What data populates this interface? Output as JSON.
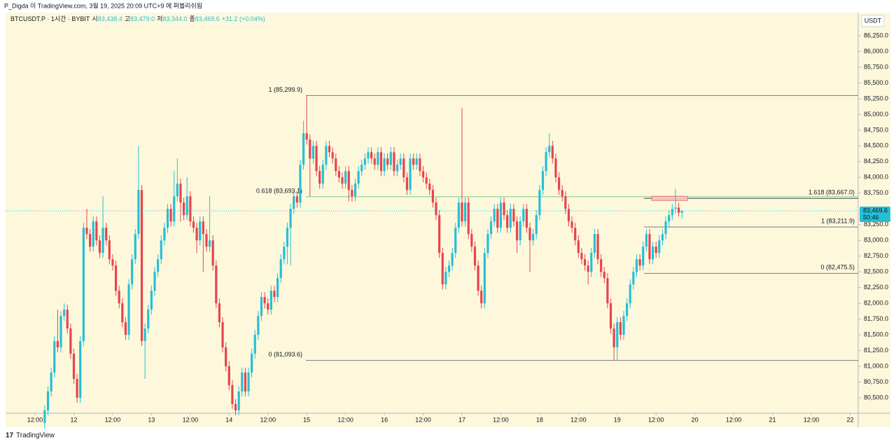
{
  "header": "P_Digda 이 TradingView.com, 3월 19, 2025 20:09 UTC+9 에 퍼블리쉬됨",
  "footer": "TradingView",
  "chart_data": {
    "type": "candlestick",
    "legend": {
      "symbol": "BTCUSDT.P · 1시간 · BYBIT",
      "open": {
        "label": "시",
        "value": "83,438.4"
      },
      "high": {
        "label": "고",
        "value": "83,479.0"
      },
      "low": {
        "label": "저",
        "value": "83,344.0"
      },
      "close": {
        "label": "종",
        "value": "83,469.6"
      },
      "change": "+31.2 (+0.04%)"
    },
    "currency": "USDT",
    "current_price": {
      "value": 83469.6,
      "label": "83,469.6"
    },
    "countdown": "50:46",
    "up_color": "#26bfd4",
    "down_color": "#e8434f",
    "ylim": [
      80255,
      86595
    ],
    "yticks": [
      {
        "value": 80500,
        "label": "80,500.0"
      },
      {
        "value": 80750,
        "label": "80,750.0"
      },
      {
        "value": 81000,
        "label": "81,000.0"
      },
      {
        "value": 81250,
        "label": "81,250.0"
      },
      {
        "value": 81500,
        "label": "81,500.0"
      },
      {
        "value": 81750,
        "label": "81,750.0"
      },
      {
        "value": 82000,
        "label": "82,000.0"
      },
      {
        "value": 82250,
        "label": "82,250.0"
      },
      {
        "value": 82500,
        "label": "82,500.0"
      },
      {
        "value": 82750,
        "label": "82,750.0"
      },
      {
        "value": 83000,
        "label": "83,000.0"
      },
      {
        "value": 83250,
        "label": "83,250.0"
      },
      {
        "value": 83750,
        "label": "83,750.0"
      },
      {
        "value": 84000,
        "label": "84,000.0"
      },
      {
        "value": 84250,
        "label": "84,250.0"
      },
      {
        "value": 84500,
        "label": "84,500.0"
      },
      {
        "value": 84750,
        "label": "84,750.0"
      },
      {
        "value": 85000,
        "label": "85,000.0"
      },
      {
        "value": 85250,
        "label": "85,250.0"
      },
      {
        "value": 85500,
        "label": "85,500.0"
      },
      {
        "value": 85750,
        "label": "85,750.0"
      },
      {
        "value": 86000,
        "label": "86,000.0"
      },
      {
        "value": 86250,
        "label": "86,250.0"
      }
    ],
    "xlim": [
      -12.1,
      251.5
    ],
    "xticks": [
      {
        "value": -3,
        "label": "12:00"
      },
      {
        "value": 9,
        "label": "12"
      },
      {
        "value": 21,
        "label": "12:00"
      },
      {
        "value": 33,
        "label": "13"
      },
      {
        "value": 45,
        "label": "12:00"
      },
      {
        "value": 57,
        "label": "14"
      },
      {
        "value": 69,
        "label": "12:00"
      },
      {
        "value": 81,
        "label": "15"
      },
      {
        "value": 93,
        "label": "12:00"
      },
      {
        "value": 105,
        "label": "16"
      },
      {
        "value": 117,
        "label": "12:00"
      },
      {
        "value": 129,
        "label": "17"
      },
      {
        "value": 141,
        "label": "12:00"
      },
      {
        "value": 153,
        "label": "18"
      },
      {
        "value": 165,
        "label": "12:00"
      },
      {
        "value": 177,
        "label": "19"
      },
      {
        "value": 189,
        "label": "12:00"
      },
      {
        "value": 201,
        "label": "20"
      },
      {
        "value": 213,
        "label": "12:00"
      },
      {
        "value": 225,
        "label": "21"
      },
      {
        "value": 237,
        "label": "12:00"
      },
      {
        "value": 249,
        "label": "22"
      }
    ],
    "fibs": [
      {
        "color": "#787b86",
        "levels": [
          {
            "value": 85299.9,
            "label": "1 (85,299.9)",
            "color": "#787b86"
          },
          {
            "value": 83693.1,
            "label": "0.618 (83,693.1)",
            "color": "#81c784"
          },
          {
            "value": 81093.6,
            "label": "0 (81,093.6)",
            "color": "#787b86"
          }
        ]
      },
      {
        "color": "#787b86",
        "levels": [
          {
            "value": 83667.0,
            "label": "1.618 (83,667.0)",
            "color": "#434651"
          },
          {
            "value": 83211.9,
            "label": "1 (83,211.9)",
            "color": "#787b86"
          },
          {
            "value": 82475.5,
            "label": "0 (82,475.5)",
            "color": "#787b86"
          }
        ]
      }
    ],
    "candles": [
      [
        80100,
        80380,
        80000,
        80300
      ],
      [
        80300,
        80680,
        80220,
        80600
      ],
      [
        80600,
        80980,
        80520,
        80900
      ],
      [
        80900,
        81480,
        80820,
        81400
      ],
      [
        81400,
        81900,
        81220,
        81300
      ],
      [
        81300,
        81880,
        81220,
        81800
      ],
      [
        81800,
        82000,
        81720,
        81900
      ],
      [
        81900,
        81980,
        81520,
        81600
      ],
      [
        81600,
        81680,
        81120,
        81200
      ],
      [
        81200,
        81280,
        80720,
        80800
      ],
      [
        80800,
        80880,
        80420,
        80500
      ],
      [
        80500,
        81480,
        80420,
        81400
      ],
      [
        81400,
        83280,
        81320,
        83200
      ],
      [
        83200,
        83500,
        83020,
        83100
      ],
      [
        83100,
        83180,
        82820,
        82900
      ],
      [
        82900,
        83380,
        82820,
        83300
      ],
      [
        83300,
        83380,
        82920,
        83000
      ],
      [
        83000,
        83080,
        82720,
        82800
      ],
      [
        82800,
        83700,
        82720,
        83200
      ],
      [
        83200,
        83280,
        82920,
        83000
      ],
      [
        83000,
        83080,
        82620,
        82700
      ],
      [
        82700,
        82780,
        82520,
        82600
      ],
      [
        82600,
        82680,
        82120,
        82200
      ],
      [
        82200,
        82280,
        81920,
        82000
      ],
      [
        82000,
        82080,
        81620,
        81700
      ],
      [
        81700,
        81780,
        81420,
        81500
      ],
      [
        81500,
        82380,
        81420,
        82300
      ],
      [
        82300,
        82780,
        82220,
        82700
      ],
      [
        82700,
        83180,
        82620,
        83100
      ],
      [
        83100,
        84500,
        83020,
        83800
      ],
      [
        83800,
        83880,
        81320,
        81400
      ],
      [
        81400,
        81680,
        80800,
        81600
      ],
      [
        81600,
        81980,
        81520,
        81900
      ],
      [
        81900,
        82280,
        81820,
        82200
      ],
      [
        82200,
        82580,
        82120,
        82500
      ],
      [
        82500,
        82780,
        82420,
        82700
      ],
      [
        82700,
        83080,
        82620,
        83000
      ],
      [
        83000,
        83280,
        82920,
        83200
      ],
      [
        83200,
        83580,
        83120,
        83500
      ],
      [
        83500,
        83580,
        83220,
        83300
      ],
      [
        83300,
        84100,
        83220,
        83700
      ],
      [
        83700,
        84300,
        83620,
        83900
      ],
      [
        83900,
        83980,
        83300,
        83600
      ],
      [
        83600,
        83680,
        83320,
        83400
      ],
      [
        83400,
        84000,
        83320,
        83700
      ],
      [
        83700,
        83780,
        83220,
        83300
      ],
      [
        83300,
        83380,
        83120,
        83200
      ],
      [
        83200,
        83280,
        82800,
        83000
      ],
      [
        83000,
        83380,
        82920,
        83300
      ],
      [
        83300,
        83380,
        82500,
        83100
      ],
      [
        83100,
        83180,
        82820,
        82900
      ],
      [
        82900,
        83700,
        82820,
        83000
      ],
      [
        83000,
        83080,
        82520,
        82600
      ],
      [
        82600,
        82680,
        81920,
        82000
      ],
      [
        82000,
        82080,
        81620,
        81700
      ],
      [
        81700,
        81780,
        81220,
        81300
      ],
      [
        81300,
        81380,
        80920,
        81000
      ],
      [
        81000,
        81080,
        80620,
        80700
      ],
      [
        80700,
        80780,
        80320,
        80400
      ],
      [
        80400,
        80480,
        80220,
        80300
      ],
      [
        80300,
        80680,
        80220,
        80600
      ],
      [
        80600,
        80980,
        80520,
        80900
      ],
      [
        80900,
        80980,
        80520,
        80600
      ],
      [
        80600,
        80980,
        80520,
        80900
      ],
      [
        80900,
        81280,
        80820,
        81200
      ],
      [
        81200,
        81580,
        81120,
        81500
      ],
      [
        81500,
        81880,
        81420,
        81800
      ],
      [
        81800,
        82180,
        81720,
        82100
      ],
      [
        82100,
        82180,
        81920,
        82000
      ],
      [
        82000,
        82080,
        81820,
        81900
      ],
      [
        81900,
        82280,
        81820,
        82200
      ],
      [
        82200,
        82280,
        82020,
        82100
      ],
      [
        82100,
        82480,
        82020,
        82400
      ],
      [
        82400,
        82780,
        82320,
        82700
      ],
      [
        82700,
        82980,
        82620,
        82900
      ],
      [
        82900,
        83280,
        82620,
        83200
      ],
      [
        83200,
        83580,
        82600,
        83500
      ],
      [
        83500,
        83780,
        83420,
        83700
      ],
      [
        83700,
        83780,
        83520,
        83600
      ],
      [
        83600,
        84280,
        83520,
        84200
      ],
      [
        84200,
        84900,
        84120,
        84700
      ],
      [
        84700,
        85299.9,
        84520,
        84600
      ],
      [
        84600,
        84680,
        83700,
        84300
      ],
      [
        84300,
        84580,
        84220,
        84500
      ],
      [
        84500,
        84580,
        84020,
        84100
      ],
      [
        84100,
        84180,
        83820,
        83900
      ],
      [
        83900,
        84280,
        83820,
        84200
      ],
      [
        84200,
        84580,
        84120,
        84500
      ],
      [
        84500,
        84580,
        84320,
        84400
      ],
      [
        84400,
        84480,
        84220,
        84300
      ],
      [
        84300,
        84380,
        84020,
        84100
      ],
      [
        84100,
        84180,
        83920,
        84000
      ],
      [
        84000,
        84080,
        83820,
        83900
      ],
      [
        83900,
        84180,
        83820,
        84100
      ],
      [
        84100,
        84180,
        83620,
        83800
      ],
      [
        83800,
        83880,
        83620,
        83700
      ],
      [
        83700,
        83980,
        83620,
        83900
      ],
      [
        83900,
        84180,
        83820,
        84100
      ],
      [
        84100,
        84280,
        84020,
        84200
      ],
      [
        84200,
        84380,
        84120,
        84300
      ],
      [
        84300,
        84480,
        84220,
        84400
      ],
      [
        84400,
        84480,
        84220,
        84300
      ],
      [
        84300,
        84380,
        84120,
        84200
      ],
      [
        84200,
        84480,
        84120,
        84400
      ],
      [
        84400,
        84480,
        84020,
        84100
      ],
      [
        84100,
        84380,
        84020,
        84300
      ],
      [
        84300,
        84380,
        84120,
        84200
      ],
      [
        84200,
        84480,
        84120,
        84400
      ],
      [
        84400,
        84480,
        84020,
        84100
      ],
      [
        84100,
        84280,
        84020,
        84200
      ],
      [
        84200,
        84380,
        84120,
        84300
      ],
      [
        84300,
        84380,
        83920,
        84000
      ],
      [
        84000,
        84080,
        83720,
        83800
      ],
      [
        83800,
        84380,
        83720,
        84300
      ],
      [
        84300,
        84380,
        84120,
        84200
      ],
      [
        84200,
        84380,
        84120,
        84300
      ],
      [
        84300,
        84380,
        84020,
        84100
      ],
      [
        84100,
        84180,
        83920,
        84000
      ],
      [
        84000,
        84080,
        83820,
        83900
      ],
      [
        83900,
        83980,
        83720,
        83800
      ],
      [
        83800,
        83880,
        83520,
        83600
      ],
      [
        83600,
        83680,
        83320,
        83400
      ],
      [
        83400,
        83480,
        82720,
        82800
      ],
      [
        82800,
        82880,
        82220,
        82300
      ],
      [
        82300,
        82580,
        82220,
        82500
      ],
      [
        82500,
        82680,
        82420,
        82600
      ],
      [
        82600,
        82880,
        82520,
        82800
      ],
      [
        82800,
        83280,
        82720,
        83200
      ],
      [
        83200,
        83680,
        83120,
        83600
      ],
      [
        83600,
        85100,
        83220,
        83300
      ],
      [
        83300,
        83680,
        83220,
        83600
      ],
      [
        83600,
        83680,
        83020,
        83100
      ],
      [
        83100,
        83180,
        82820,
        82900
      ],
      [
        82900,
        82980,
        82520,
        82600
      ],
      [
        82600,
        82680,
        82120,
        82200
      ],
      [
        82200,
        82280,
        81920,
        82000
      ],
      [
        82000,
        82880,
        81920,
        82800
      ],
      [
        82800,
        83180,
        82720,
        83100
      ],
      [
        83100,
        83380,
        83020,
        83300
      ],
      [
        83300,
        83580,
        83220,
        83500
      ],
      [
        83500,
        83580,
        83120,
        83200
      ],
      [
        83200,
        83680,
        83120,
        83600
      ],
      [
        83600,
        83680,
        83320,
        83400
      ],
      [
        83400,
        83480,
        83120,
        83200
      ],
      [
        83200,
        83580,
        83120,
        83500
      ],
      [
        83500,
        83580,
        83220,
        83300
      ],
      [
        83300,
        83380,
        82800,
        83000
      ],
      [
        83000,
        83380,
        82920,
        83300
      ],
      [
        83300,
        83580,
        83220,
        83500
      ],
      [
        83500,
        83580,
        83120,
        83200
      ],
      [
        83200,
        83280,
        82500,
        83000
      ],
      [
        83000,
        83180,
        82920,
        83100
      ],
      [
        83100,
        83480,
        83020,
        83400
      ],
      [
        83400,
        83880,
        83320,
        83800
      ],
      [
        83800,
        84180,
        83720,
        84100
      ],
      [
        84100,
        84480,
        84020,
        84400
      ],
      [
        84400,
        84700,
        84320,
        84500
      ],
      [
        84500,
        84580,
        84220,
        84300
      ],
      [
        84300,
        84380,
        83920,
        84000
      ],
      [
        84000,
        84080,
        83720,
        83800
      ],
      [
        83800,
        83880,
        83620,
        83700
      ],
      [
        83700,
        83780,
        83420,
        83500
      ],
      [
        83500,
        83580,
        83220,
        83300
      ],
      [
        83300,
        83380,
        83120,
        83200
      ],
      [
        83200,
        83280,
        82920,
        83000
      ],
      [
        83000,
        83080,
        82720,
        82800
      ],
      [
        82800,
        82880,
        82620,
        82700
      ],
      [
        82700,
        82780,
        82520,
        82600
      ],
      [
        82600,
        82680,
        82300,
        82500
      ],
      [
        82500,
        82880,
        82420,
        82800
      ],
      [
        82800,
        83180,
        82720,
        83100
      ],
      [
        83100,
        83180,
        82620,
        82700
      ],
      [
        82700,
        82780,
        82420,
        82500
      ],
      [
        82500,
        82580,
        82320,
        82400
      ],
      [
        82400,
        82480,
        81920,
        82000
      ],
      [
        82000,
        82080,
        81520,
        81600
      ],
      [
        81600,
        81680,
        81093.6,
        81300
      ],
      [
        81300,
        81780,
        81100,
        81700
      ],
      [
        81700,
        81780,
        81420,
        81500
      ],
      [
        81500,
        81880,
        81420,
        81800
      ],
      [
        81800,
        82080,
        81720,
        82000
      ],
      [
        82000,
        82380,
        81920,
        82300
      ],
      [
        82300,
        82580,
        82220,
        82500
      ],
      [
        82500,
        82780,
        82420,
        82700
      ],
      [
        82700,
        82780,
        82520,
        82600
      ],
      [
        82600,
        82980,
        82520,
        82900
      ],
      [
        82900,
        83180,
        82820,
        83100
      ],
      [
        83100,
        83180,
        82620,
        82700
      ],
      [
        82700,
        82980,
        82620,
        82900
      ],
      [
        82900,
        82980,
        82720,
        82800
      ],
      [
        82800,
        83080,
        82720,
        83000
      ],
      [
        83000,
        83180,
        82920,
        83100
      ],
      [
        83100,
        83380,
        83020,
        83300
      ],
      [
        83300,
        83480,
        83220,
        83400
      ],
      [
        83400,
        83580,
        83320,
        83500
      ],
      [
        83500,
        83820,
        83420,
        83520
      ],
      [
        83520,
        83600,
        83380,
        83438.4
      ],
      [
        83438.4,
        83479,
        83344,
        83469.6
      ]
    ]
  }
}
